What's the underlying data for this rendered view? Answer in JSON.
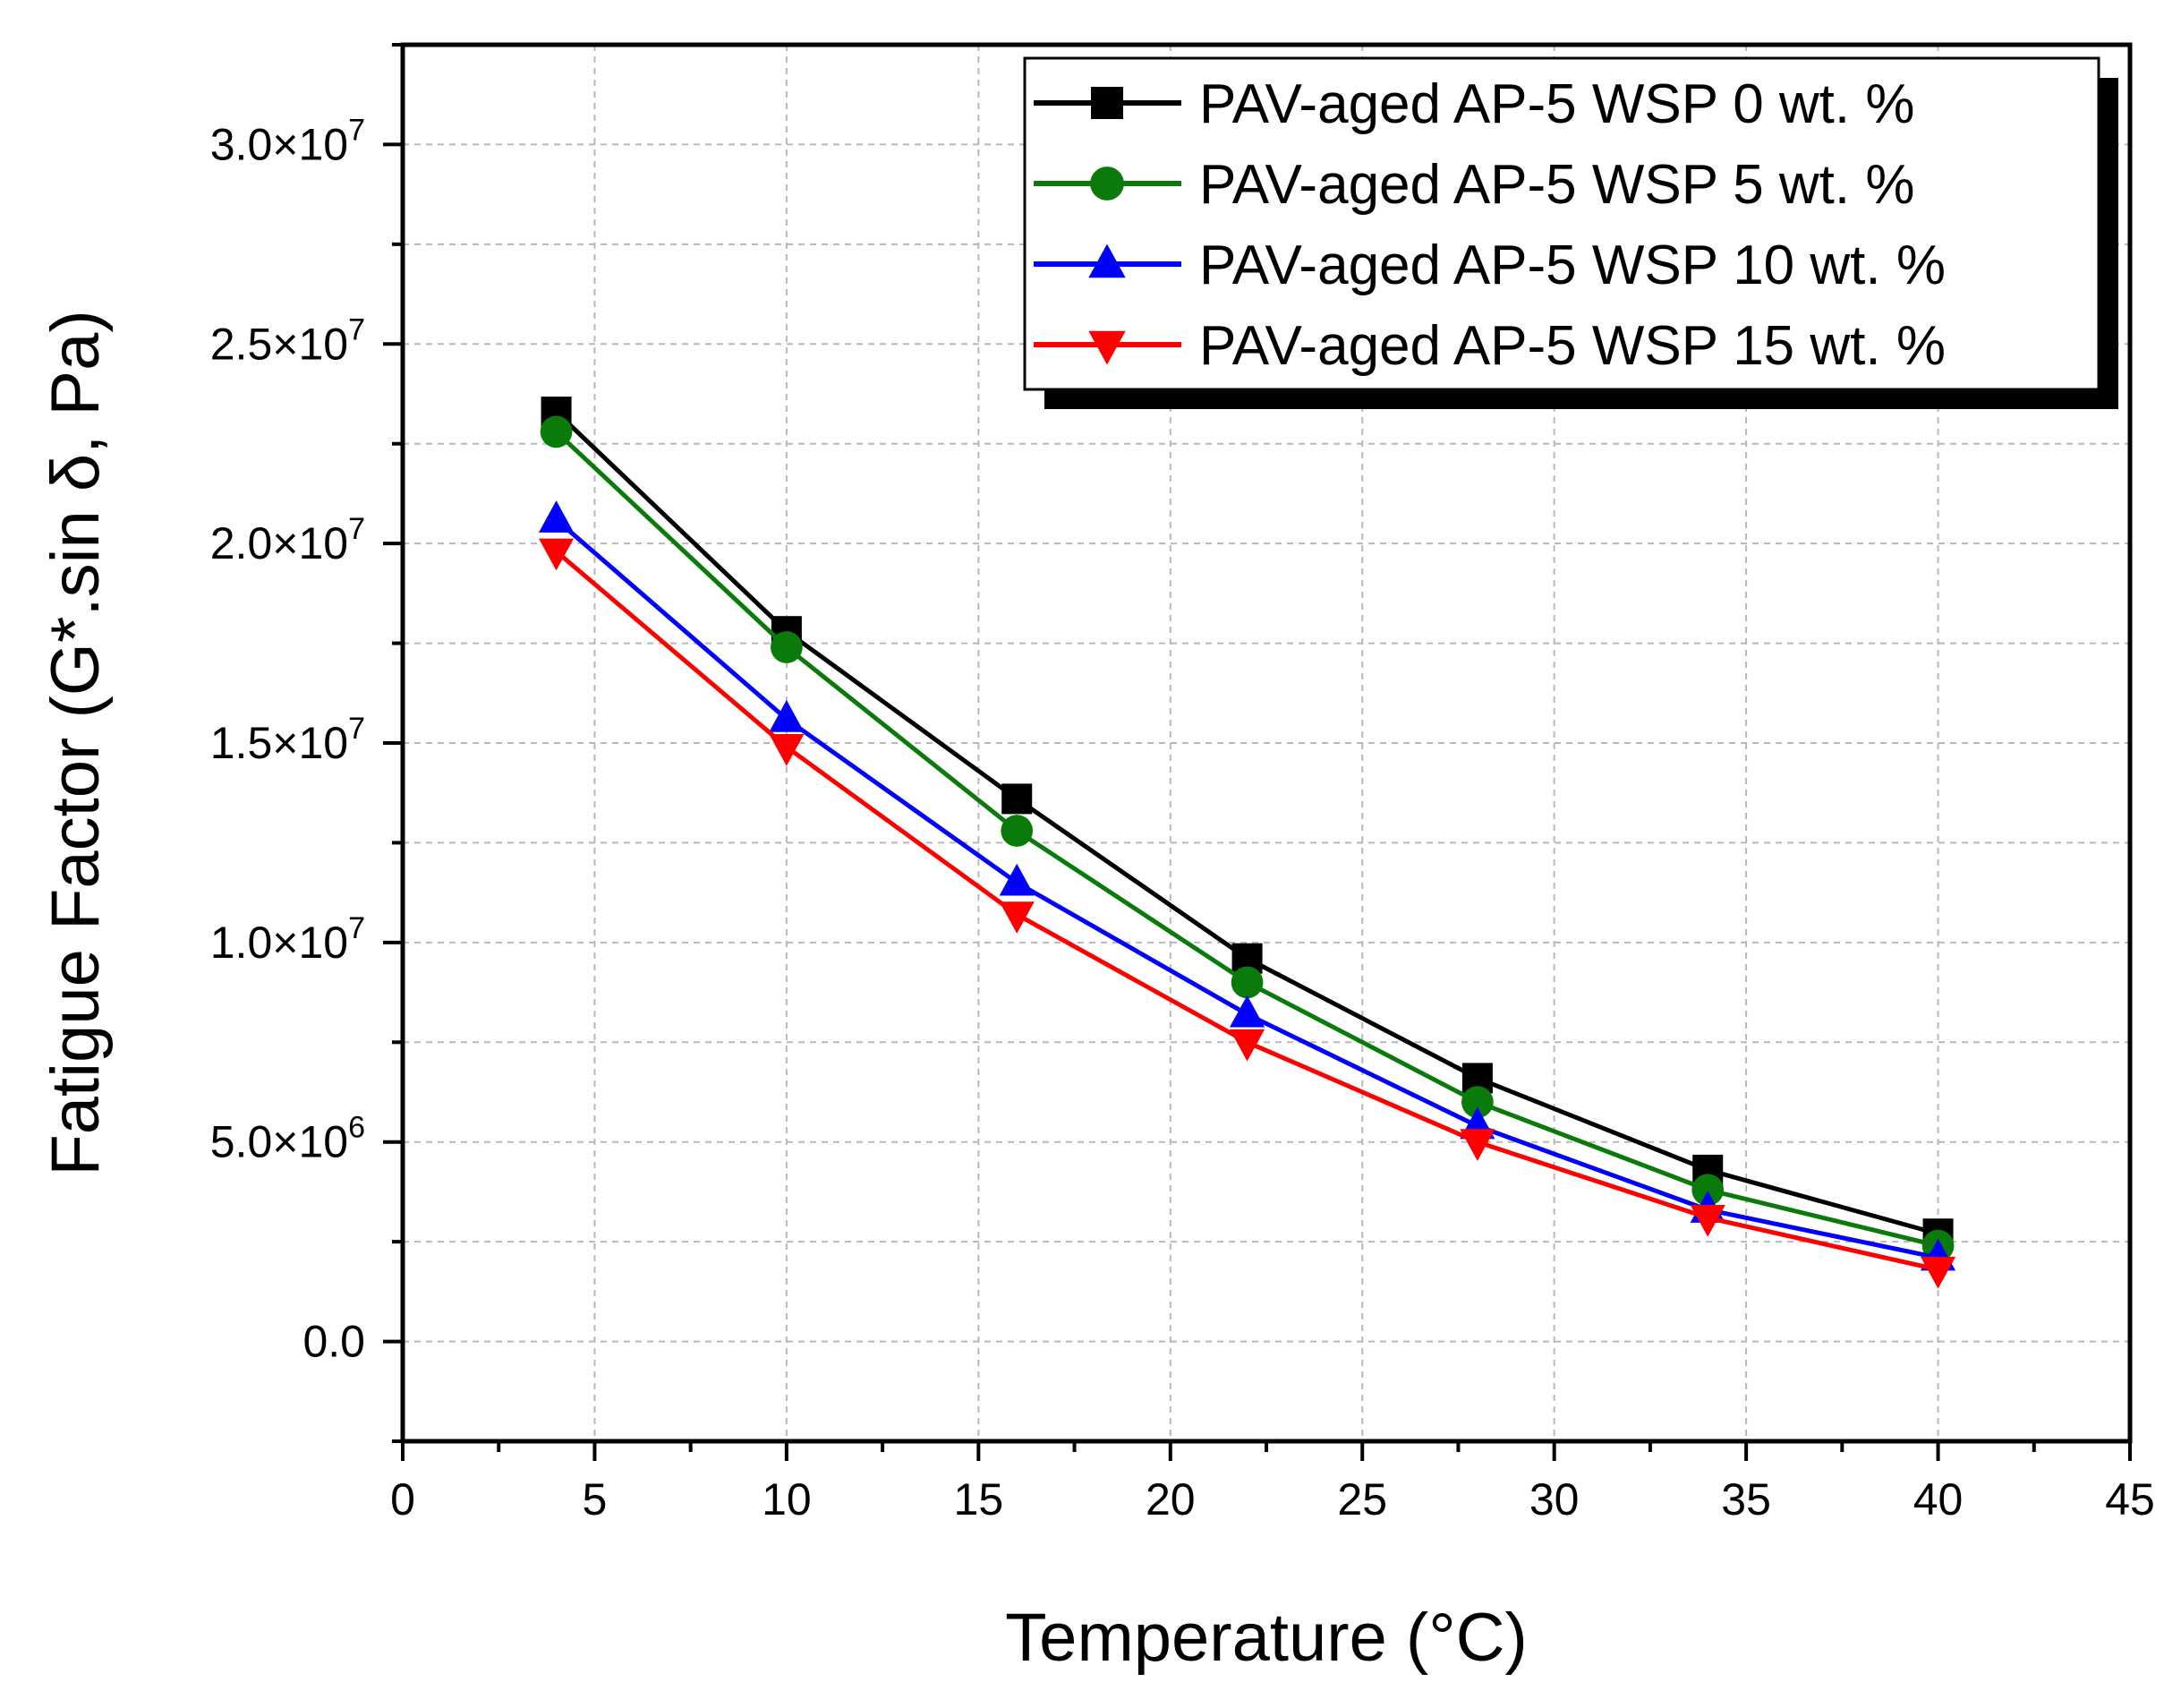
{
  "chart_data": {
    "type": "line",
    "xlabel": "Temperature (°C)",
    "ylabel": "Fatigue Factor (G*.sin δ, Pa)",
    "xlim": [
      0,
      45
    ],
    "ylim": [
      -2500000,
      32500000
    ],
    "grid": true,
    "legend_position": "top-right",
    "x_ticks": [
      0,
      5,
      10,
      15,
      20,
      25,
      30,
      35,
      40,
      45
    ],
    "x_tick_labels": [
      "0",
      "5",
      "10",
      "15",
      "20",
      "25",
      "30",
      "35",
      "40",
      "45"
    ],
    "y_ticks": [
      0,
      5000000,
      10000000,
      15000000,
      20000000,
      25000000,
      30000000
    ],
    "y_tick_labels": [
      {
        "mantissa": "0.0",
        "exp": ""
      },
      {
        "mantissa": "5.0×10",
        "exp": "6"
      },
      {
        "mantissa": "1.0×10",
        "exp": "7"
      },
      {
        "mantissa": "1.5×10",
        "exp": "7"
      },
      {
        "mantissa": "2.0×10",
        "exp": "7"
      },
      {
        "mantissa": "2.5×10",
        "exp": "7"
      },
      {
        "mantissa": "3.0×10",
        "exp": "7"
      }
    ],
    "x": [
      4,
      10,
      16,
      22,
      28,
      34,
      40
    ],
    "series": [
      {
        "name": "PAV-aged AP-5 WSP 0 wt. %",
        "color": "#000000",
        "marker": "square",
        "values": [
          23300000,
          17800000,
          13600000,
          9600000,
          6600000,
          4300000,
          2700000
        ]
      },
      {
        "name": "PAV-aged AP-5 WSP 5 wt. %",
        "color": "#0a7a0a",
        "marker": "circle",
        "values": [
          22800000,
          17400000,
          12800000,
          9000000,
          6000000,
          3800000,
          2400000
        ]
      },
      {
        "name": "PAV-aged AP-5 WSP 10 wt. %",
        "color": "#0000ff",
        "marker": "triangle-up",
        "values": [
          20600000,
          15600000,
          11500000,
          8200000,
          5400000,
          3300000,
          2100000
        ]
      },
      {
        "name": "PAV-aged AP-5 WSP 15 wt. %",
        "color": "#ff0000",
        "marker": "triangle-down",
        "values": [
          19800000,
          14900000,
          10700000,
          7500000,
          5000000,
          3100000,
          1800000
        ]
      }
    ]
  }
}
